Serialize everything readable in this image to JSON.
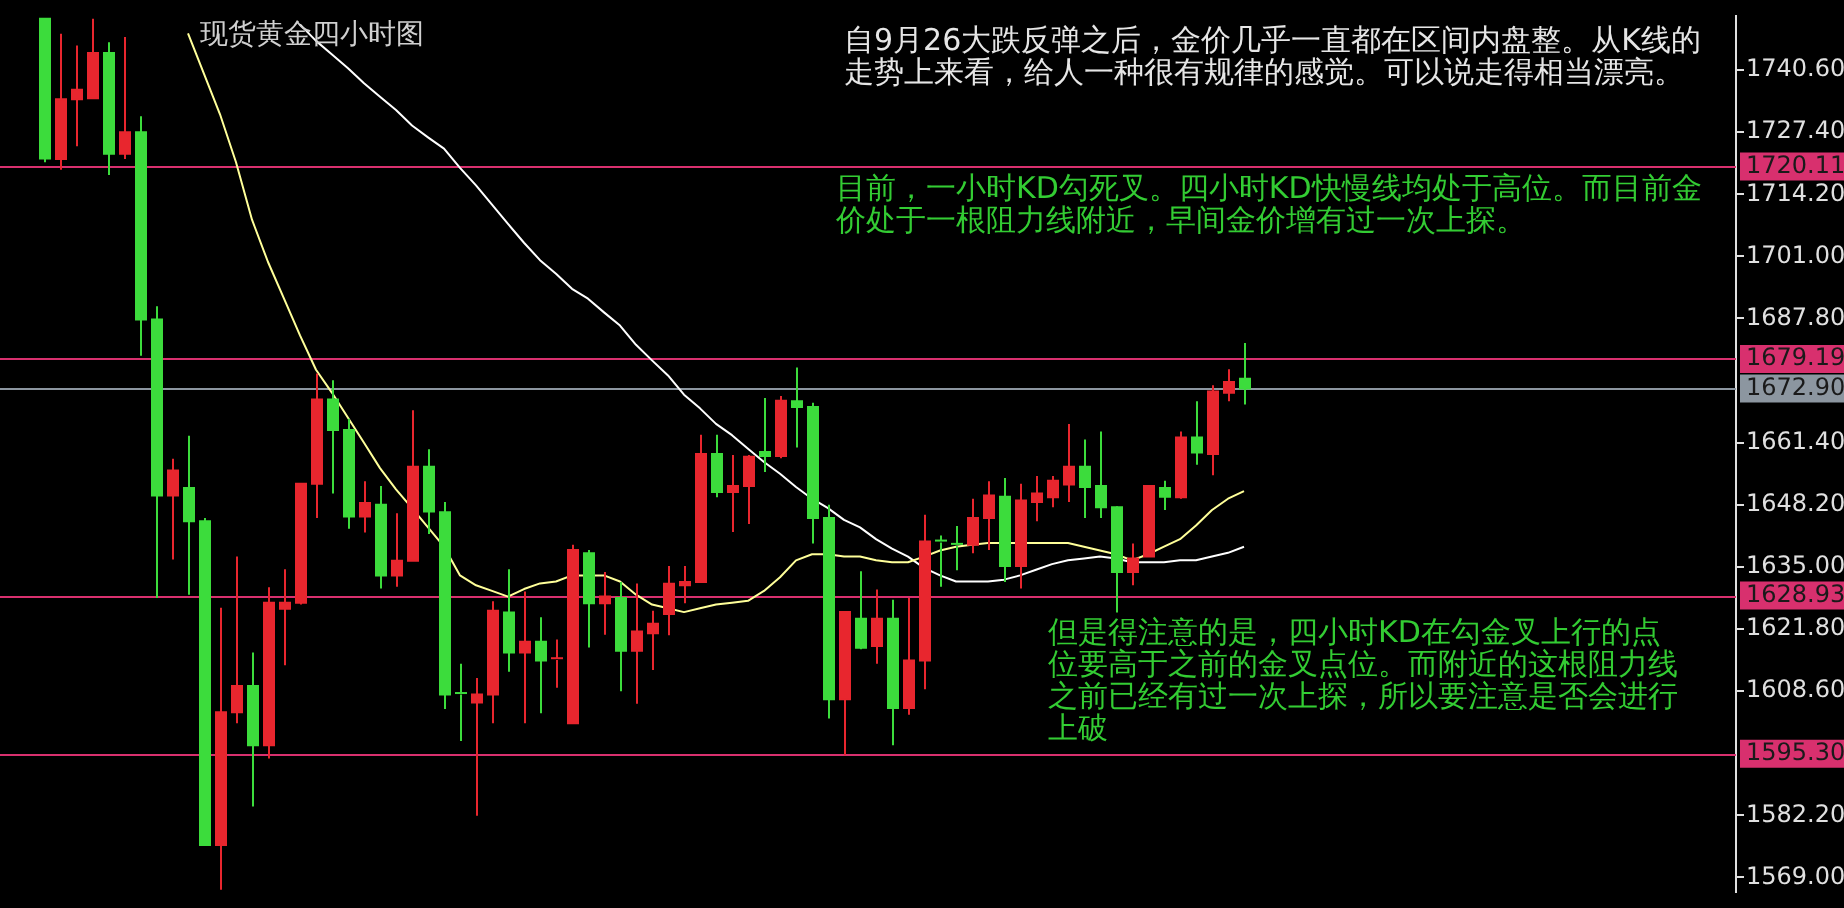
{
  "chart_data": {
    "type": "candlestick",
    "title": "现货黄金四小时图",
    "categories": [
      null,
      null,
      null,
      null,
      null,
      null,
      null,
      null,
      null,
      null,
      null,
      null,
      null,
      null,
      null,
      null,
      null,
      null,
      null,
      null,
      null,
      null,
      null,
      null,
      null,
      null,
      null,
      null,
      null,
      null,
      null,
      null,
      null,
      null,
      null,
      null,
      null,
      null,
      null,
      null,
      null,
      null,
      null,
      null,
      null,
      null,
      null,
      null,
      null,
      null,
      null,
      null,
      null,
      null,
      null,
      null,
      null,
      null,
      null,
      null,
      null,
      null,
      null,
      null,
      null,
      null,
      null,
      null,
      null,
      null,
      null,
      null,
      null,
      null,
      null,
      null
    ],
    "ohlc": [
      [
        1751.5,
        1751.5,
        1721.0,
        1721.8
      ],
      [
        1721.7,
        1748.3,
        1719.4,
        1734.4
      ],
      [
        1734.4,
        1745.8,
        1724.4,
        1736.4
      ],
      [
        1734.6,
        1751.5,
        1734.6,
        1744.2
      ],
      [
        1744.2,
        1746.5,
        1718.3,
        1722.8
      ],
      [
        1722.8,
        1747.6,
        1721.7,
        1727.4
      ],
      [
        1727.4,
        1730.8,
        1679.9,
        1687.6
      ],
      [
        1687.6,
        1690.4,
        1628.4,
        1650.2
      ],
      [
        1650.2,
        1658.0,
        1636.6,
        1655.5
      ],
      [
        1651.8,
        1662.9,
        1629.1,
        1644.7
      ],
      [
        1644.7,
        1645.4,
        1575.9,
        1575.9
      ],
      [
        1575.9,
        1626.3,
        1566.4,
        1604.1
      ],
      [
        1604.1,
        1637.2,
        1601.8,
        1609.7
      ],
      [
        1609.7,
        1616.8,
        1584.1,
        1597.1
      ],
      [
        1597.1,
        1630.7,
        1594.3,
        1627.4
      ],
      [
        1626.1,
        1634.5,
        1614.1,
        1627.4
      ],
      [
        1627.4,
        1652.7,
        1627.0,
        1652.7
      ],
      [
        1652.7,
        1676.1,
        1645.4,
        1670.6
      ],
      [
        1670.6,
        1674.7,
        1650.6,
        1664.1
      ],
      [
        1664.1,
        1666.5,
        1643.1,
        1645.7
      ],
      [
        1645.7,
        1653.2,
        1642.3,
        1648.6
      ],
      [
        1648.2,
        1652.2,
        1630.4,
        1633.2
      ],
      [
        1633.2,
        1646.4,
        1630.8,
        1636.3
      ],
      [
        1636.3,
        1668.3,
        1636.3,
        1656.3
      ],
      [
        1656.3,
        1660.0,
        1642.0,
        1646.8
      ],
      [
        1646.6,
        1648.8,
        1604.8,
        1607.9
      ],
      [
        1608.2,
        1614.4,
        1598.0,
        1607.9
      ],
      [
        1606.2,
        1611.4,
        1582.1,
        1607.9
      ],
      [
        1607.9,
        1627.7,
        1601.8,
        1625.7
      ],
      [
        1625.3,
        1634.5,
        1612.7,
        1616.8
      ],
      [
        1616.8,
        1629.8,
        1601.8,
        1619.1
      ],
      [
        1619.1,
        1624.3,
        1603.9,
        1615.1
      ],
      [
        1615.2,
        1619.6,
        1609.3,
        1615.6
      ],
      [
        1601.8,
        1639.7,
        1601.8,
        1638.6
      ],
      [
        1637.9,
        1638.6,
        1617.9,
        1627.3
      ],
      [
        1627.3,
        1633.9,
        1620.6,
        1628.7
      ],
      [
        1628.4,
        1631.8,
        1608.6,
        1617.2
      ],
      [
        1617.2,
        1631.5,
        1605.9,
        1621.3
      ],
      [
        1620.9,
        1625.7,
        1613.1,
        1622.9
      ],
      [
        1625.0,
        1635.2,
        1620.5,
        1631.4
      ],
      [
        1631.1,
        1635.2,
        1627.3,
        1631.8
      ],
      [
        1631.8,
        1663.1,
        1631.8,
        1659.0
      ],
      [
        1659.0,
        1663.1,
        1649.8,
        1650.9
      ],
      [
        1650.9,
        1658.8,
        1642.4,
        1652.2
      ],
      [
        1652.2,
        1658.8,
        1644.1,
        1658.4
      ],
      [
        1659.4,
        1670.9,
        1655.2,
        1658.6
      ],
      [
        1658.6,
        1671.3,
        1658.1,
        1670.3
      ],
      [
        1670.2,
        1677.4,
        1660.4,
        1669.0
      ],
      [
        1669.0,
        1669.9,
        1640.0,
        1645.4
      ],
      [
        1645.4,
        1648.2,
        1602.8,
        1606.9
      ],
      [
        1606.9,
        1625.4,
        1595.0,
        1625.4
      ],
      [
        1624.0,
        1634.1,
        1617.5,
        1617.8
      ],
      [
        1618.2,
        1630.2,
        1614.4,
        1624.0
      ],
      [
        1624.0,
        1628.0,
        1597.1,
        1605.0
      ],
      [
        1605.0,
        1628.4,
        1603.6,
        1615.1
      ],
      [
        1615.1,
        1646.1,
        1609.0,
        1640.4
      ],
      [
        1640.6,
        1641.7,
        1630.8,
        1640.2
      ],
      [
        1639.9,
        1643.7,
        1634.3,
        1639.5
      ],
      [
        1639.7,
        1649.5,
        1637.9,
        1645.4
      ],
      [
        1645.4,
        1653.2,
        1638.6,
        1650.2
      ],
      [
        1649.9,
        1653.9,
        1631.8,
        1635.2
      ],
      [
        1635.2,
        1652.7,
        1630.4,
        1649.1
      ],
      [
        1648.8,
        1654.3,
        1644.7,
        1650.6
      ],
      [
        1649.8,
        1654.3,
        1647.7,
        1653.3
      ],
      [
        1652.5,
        1665.4,
        1648.8,
        1656.3
      ],
      [
        1656.3,
        1662.1,
        1645.4,
        1652.0
      ],
      [
        1652.2,
        1663.8,
        1645.4,
        1647.7
      ],
      [
        1647.7,
        1647.9,
        1625.3,
        1633.9
      ],
      [
        1633.9,
        1640.0,
        1631.1,
        1636.8
      ],
      [
        1637.2,
        1652.2,
        1637.2,
        1652.2
      ],
      [
        1651.8,
        1653.3,
        1647.1,
        1649.9
      ],
      [
        1649.8,
        1663.8,
        1649.5,
        1662.5
      ],
      [
        1662.5,
        1670.2,
        1656.7,
        1659.3
      ],
      [
        1659.0,
        1673.6,
        1654.5,
        1672.3
      ],
      [
        1672.0,
        1677.0,
        1670.2,
        1674.3
      ],
      [
        1675.0,
        1682.6,
        1669.5,
        1672.9
      ]
    ],
    "colors": [
      "#3cdc3c",
      "#e8262e",
      "#e8262e",
      "#e8262e",
      "#3cdc3c",
      "#e8262e",
      "#3cdc3c",
      "#3cdc3c",
      "#e8262e",
      "#3cdc3c",
      "#3cdc3c",
      "#e8262e",
      "#e8262e",
      "#3cdc3c",
      "#e8262e",
      "#e8262e",
      "#e8262e",
      "#e8262e",
      "#3cdc3c",
      "#3cdc3c",
      "#e8262e",
      "#3cdc3c",
      "#e8262e",
      "#e8262e",
      "#3cdc3c",
      "#3cdc3c",
      "#3cdc3c",
      "#e8262e",
      "#e8262e",
      "#3cdc3c",
      "#e8262e",
      "#3cdc3c",
      "#e8262e",
      "#e8262e",
      "#3cdc3c",
      "#e8262e",
      "#3cdc3c",
      "#e8262e",
      "#e8262e",
      "#e8262e",
      "#e8262e",
      "#e8262e",
      "#3cdc3c",
      "#e8262e",
      "#e8262e",
      "#3cdc3c",
      "#e8262e",
      "#3cdc3c",
      "#3cdc3c",
      "#3cdc3c",
      "#e8262e",
      "#3cdc3c",
      "#e8262e",
      "#3cdc3c",
      "#e8262e",
      "#e8262e",
      "#3cdc3c",
      "#3cdc3c",
      "#e8262e",
      "#e8262e",
      "#3cdc3c",
      "#e8262e",
      "#e8262e",
      "#e8262e",
      "#e8262e",
      "#3cdc3c",
      "#3cdc3c",
      "#3cdc3c",
      "#e8262e",
      "#e8262e",
      "#3cdc3c",
      "#e8262e",
      "#3cdc3c",
      "#e8262e",
      "#e8262e",
      "#3cdc3c"
    ],
    "series": [
      {
        "type": "line",
        "color": "#ffff99",
        "values": [
          null,
          null,
          null,
          null,
          null,
          null,
          null,
          null,
          null,
          1748.4,
          1739.8,
          1731.2,
          1721.0,
          1708.8,
          1699.8,
          1692.0,
          1684.2,
          1676.9,
          1672.0,
          1666.7,
          1661.4,
          1656.0,
          1651.5,
          1647.5,
          1643.4,
          1639.3,
          1633.2,
          1631.1,
          1629.9,
          1628.7,
          1630.3,
          1631.5,
          1631.9,
          1633.2,
          1633.2,
          1633.2,
          1631.9,
          1629.1,
          1627.0,
          1626.2,
          1625.4,
          1626.2,
          1627.0,
          1627.4,
          1627.8,
          1629.9,
          1632.8,
          1636.4,
          1637.7,
          1637.7,
          1637.2,
          1637.2,
          1636.4,
          1636.0,
          1636.0,
          1637.2,
          1638.5,
          1639.3,
          1639.7,
          1640.1,
          1640.1,
          1640.1,
          1640.1,
          1640.1,
          1640.1,
          1639.3,
          1638.5,
          1637.7,
          1636.4,
          1637.7,
          1639.3,
          1640.9,
          1643.8,
          1647.1,
          1649.5,
          1651.1
        ]
      },
      {
        "type": "line",
        "color": "#ffffff",
        "values": [
          null,
          null,
          null,
          null,
          null,
          null,
          null,
          null,
          null,
          null,
          null,
          null,
          null,
          null,
          null,
          null,
          1750.3,
          1746.8,
          1743.9,
          1741.0,
          1737.8,
          1734.9,
          1732.1,
          1728.8,
          1726.3,
          1723.9,
          1719.8,
          1716.1,
          1712.0,
          1707.9,
          1703.9,
          1700.2,
          1697.3,
          1694.1,
          1692.0,
          1689.1,
          1686.3,
          1682.2,
          1678.9,
          1675.7,
          1671.6,
          1668.7,
          1665.4,
          1663.0,
          1660.1,
          1657.3,
          1654.8,
          1652.0,
          1649.5,
          1647.5,
          1645.0,
          1643.4,
          1640.9,
          1638.9,
          1637.2,
          1634.8,
          1633.2,
          1631.9,
          1631.9,
          1631.9,
          1632.3,
          1633.2,
          1634.4,
          1635.6,
          1636.4,
          1636.8,
          1637.2,
          1636.8,
          1636.0,
          1636.0,
          1636.0,
          1636.4,
          1636.4,
          1637.2,
          1638.0,
          1639.3
        ]
      }
    ],
    "ylim": [
      1566,
      1752
    ],
    "yticks": [
      {
        "value": 1569,
        "label": "1569.00"
      },
      {
        "value": 1582.2,
        "label": "1582.20"
      },
      {
        "value": 1608.6,
        "label": "1608.60"
      },
      {
        "value": 1621.8,
        "label": "1621.80"
      },
      {
        "value": 1635,
        "label": "1635.00"
      },
      {
        "value": 1648.2,
        "label": "1648.20"
      },
      {
        "value": 1661.4,
        "label": "1661.40"
      },
      {
        "value": 1687.8,
        "label": "1687.80"
      },
      {
        "value": 1701,
        "label": "1701.00"
      },
      {
        "value": 1714.2,
        "label": "1714.20"
      },
      {
        "value": 1727.4,
        "label": "1727.40"
      },
      {
        "value": 1740.6,
        "label": "1740.60"
      }
    ],
    "ref_lines": [
      {
        "axis": "y",
        "value": 1720.11,
        "label": "1720.11",
        "color": "#d8306e"
      },
      {
        "axis": "y",
        "value": 1679.19,
        "label": "1679.19",
        "color": "#d8306e"
      },
      {
        "axis": "y",
        "value": 1672.9,
        "label": "1672.90",
        "color": "#8c96a0"
      },
      {
        "axis": "y",
        "value": 1628.93,
        "label": "1628.93",
        "color": "#d8306e"
      },
      {
        "axis": "y",
        "value": 1595.3,
        "label": "1595.30",
        "color": "#d8306e"
      }
    ],
    "annotations": [
      "自9月26大跌反弹之后，金价几乎一直都在区间内盘整。从K线的走势上来看，给人一种很有规律的感觉。可以说走得相当漂亮。",
      "目前，一小时KD勾死叉。四小时KD快慢线均处于高位。而目前金价处于一根阻力线附近，早间金价增有过一次上探。",
      "但是得注意的是，四小时KD在勾金叉上行的点位要高于之前的金叉点位。而附近的这根阻力线之前已经有过一次上探，所以要注意是否会进行上破"
    ],
    "grid": false,
    "legend": false,
    "tick_labels": "y"
  }
}
